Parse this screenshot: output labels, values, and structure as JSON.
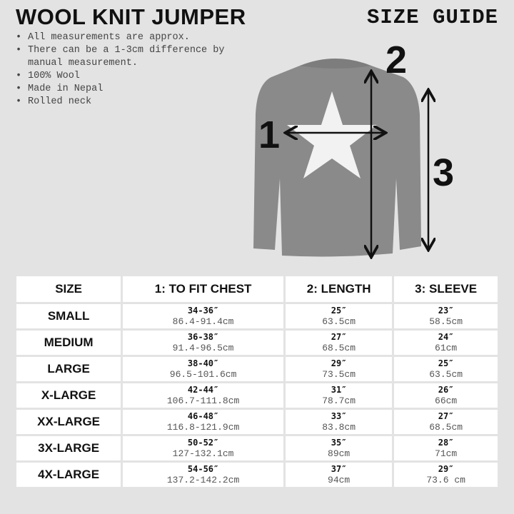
{
  "title": "WOOL KNIT JUMPER",
  "subtitle": "SIZE GUIDE",
  "notes": [
    "All measurements are approx.",
    "There can be a 1-3cm difference by manual measurement.",
    "100% Wool",
    "Made in Nepal",
    "Rolled neck"
  ],
  "diagram": {
    "labels": [
      "1",
      "2",
      "3"
    ],
    "sweater_color": "#8a8a8a",
    "star_color": "#f2f2f2"
  },
  "table": {
    "headers": [
      "SIZE",
      "1: TO FIT CHEST",
      "2: LENGTH",
      "3: SLEEVE"
    ],
    "rows": [
      {
        "size": "SMALL",
        "chest_in": "34-36″",
        "chest_cm": "86.4-91.4cm",
        "length_in": "25″",
        "length_cm": "63.5cm",
        "sleeve_in": "23″",
        "sleeve_cm": "58.5cm"
      },
      {
        "size": "MEDIUM",
        "chest_in": "36-38″",
        "chest_cm": "91.4-96.5cm",
        "length_in": "27″",
        "length_cm": "68.5cm",
        "sleeve_in": "24″",
        "sleeve_cm": "61cm"
      },
      {
        "size": "LARGE",
        "chest_in": "38-40″",
        "chest_cm": "96.5-101.6cm",
        "length_in": "29″",
        "length_cm": "73.5cm",
        "sleeve_in": "25″",
        "sleeve_cm": "63.5cm"
      },
      {
        "size": "X-LARGE",
        "chest_in": "42-44″",
        "chest_cm": "106.7-111.8cm",
        "length_in": "31″",
        "length_cm": "78.7cm",
        "sleeve_in": "26″",
        "sleeve_cm": "66cm"
      },
      {
        "size": "XX-LARGE",
        "chest_in": "46-48″",
        "chest_cm": "116.8-121.9cm",
        "length_in": "33″",
        "length_cm": "83.8cm",
        "sleeve_in": "27″",
        "sleeve_cm": "68.5cm"
      },
      {
        "size": "3X-LARGE",
        "chest_in": "50-52″",
        "chest_cm": "127-132.1cm",
        "length_in": "35″",
        "length_cm": "89cm",
        "sleeve_in": "28″",
        "sleeve_cm": "71cm"
      },
      {
        "size": "4X-LARGE",
        "chest_in": "54-56″",
        "chest_cm": "137.2-142.2cm",
        "length_in": "37″",
        "length_cm": "94cm",
        "sleeve_in": "29″",
        "sleeve_cm": "73.6 cm"
      }
    ]
  }
}
